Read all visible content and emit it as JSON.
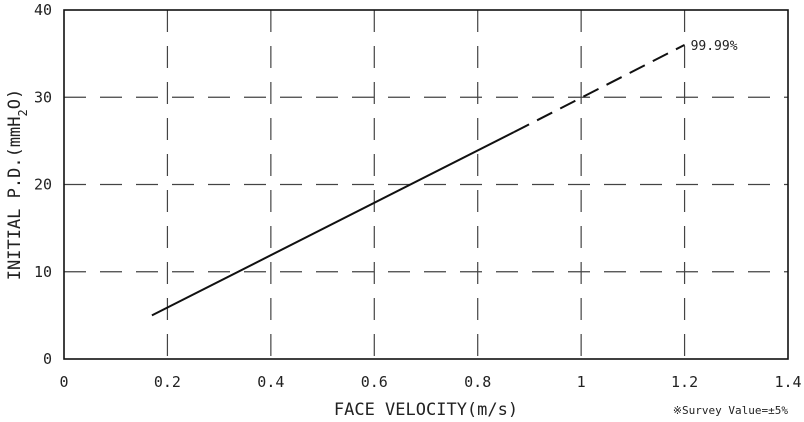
{
  "chart_data": {
    "type": "line",
    "title": "",
    "xlabel": "FACE VELOCITY(m/s)",
    "ylabel": "INITIAL P.D.(mmH2O)",
    "xlim": [
      0,
      1.4
    ],
    "ylim": [
      0,
      40
    ],
    "x_ticks": [
      0,
      0.2,
      0.4,
      0.6,
      0.8,
      1,
      1.2,
      1.4
    ],
    "x_tick_labels": [
      "0",
      "0.2",
      "0.4",
      "0.6",
      "0.8",
      "1",
      "1.2",
      "1.4"
    ],
    "y_ticks": [
      0,
      10,
      20,
      30,
      40
    ],
    "y_tick_labels": [
      "0",
      "10",
      "20",
      "30",
      "40"
    ],
    "grid": "dashed",
    "series": [
      {
        "name": "99.99%",
        "x": [
          0.17,
          0.87,
          1.2
        ],
        "y": [
          5,
          26,
          36
        ],
        "solid_until_x": 0.87,
        "dashed_from_x": 0.87,
        "color": "#111111"
      }
    ],
    "note": "※Survey Value=±5%"
  }
}
